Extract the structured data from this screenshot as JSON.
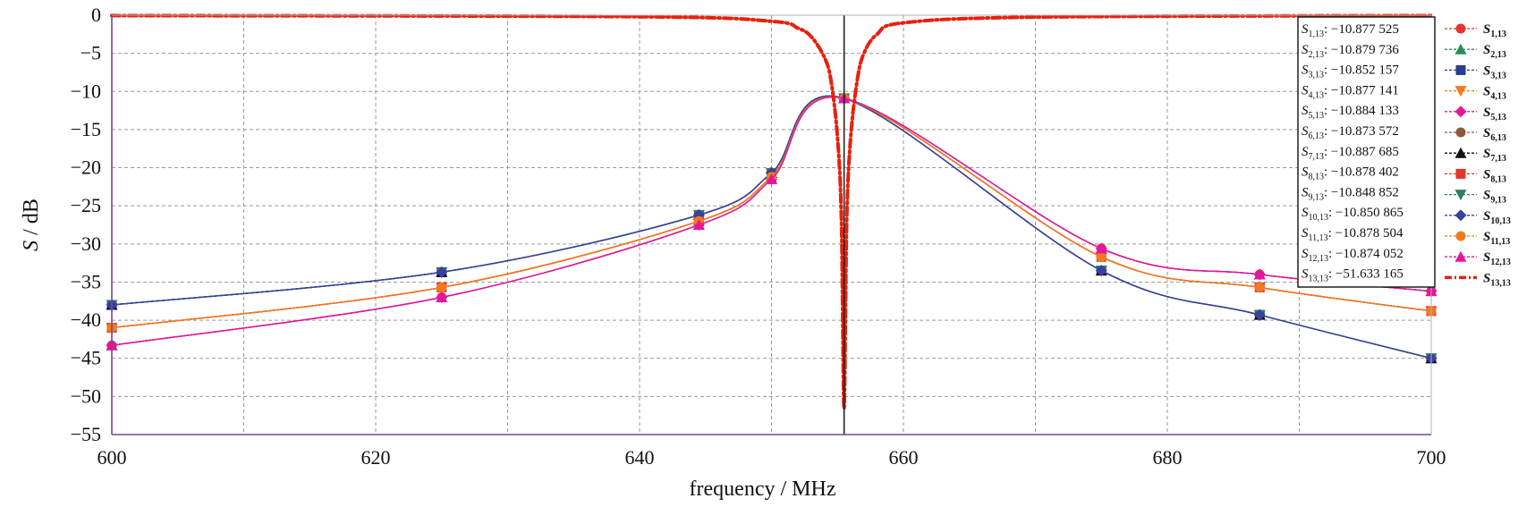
{
  "chart_data": {
    "type": "line",
    "xlabel": "frequency / MHz",
    "ylabel_main": "S",
    "ylabel_unit": " / dB",
    "xlim": [
      600,
      700
    ],
    "ylim": [
      -55,
      0
    ],
    "xticks": [
      600,
      620,
      640,
      660,
      680,
      700
    ],
    "yticks": [
      0,
      -5,
      -10,
      -15,
      -20,
      -25,
      -30,
      -35,
      -40,
      -45,
      -50,
      -55
    ],
    "grid": true,
    "grid_style": "dashed",
    "resonance_marker_x": 655.5,
    "legend_position": "right",
    "readout_position": "top-right",
    "readout_title": "",
    "series": [
      {
        "name": "S",
        "subscript": "1,13",
        "color": "#e8332a",
        "marker": "circle",
        "readout": "−10.877 525",
        "x": [
          600,
          625,
          644.5,
          650,
          655.5,
          675,
          687,
          700
        ],
        "y": [
          -43.3,
          -37.0,
          -27.5,
          -21.5,
          -10.9,
          -30.6,
          -34.0,
          -36.2
        ]
      },
      {
        "name": "S",
        "subscript": "2,13",
        "color": "#2e8b57",
        "marker": "triangle",
        "readout": "−10.879 736",
        "x": [
          600,
          625,
          644.5,
          650,
          655.5,
          675,
          687,
          700
        ],
        "y": [
          -43.3,
          -37.0,
          -27.5,
          -21.5,
          -10.9,
          -30.6,
          -34.0,
          -36.2
        ]
      },
      {
        "name": "S",
        "subscript": "3,13",
        "color": "#2b3c8f",
        "marker": "square",
        "readout": "−10.852 157",
        "x": [
          600,
          625,
          644.5,
          650,
          655.5,
          675,
          687,
          700
        ],
        "y": [
          -38.0,
          -33.7,
          -26.2,
          -20.7,
          -10.9,
          -33.5,
          -39.3,
          -45.0
        ]
      },
      {
        "name": "S",
        "subscript": "4,13",
        "color": "#f07b1f",
        "marker": "triangle-down",
        "readout": "−10.877 141",
        "x": [
          600,
          625,
          644.5,
          650,
          655.5,
          675,
          687,
          700
        ],
        "y": [
          -41.0,
          -35.7,
          -27.0,
          -21.2,
          -10.9,
          -31.7,
          -35.7,
          -38.8
        ]
      },
      {
        "name": "S",
        "subscript": "5,13",
        "color": "#e5169b",
        "marker": "diamond",
        "readout": "−10.884 133",
        "x": [
          600,
          625,
          644.5,
          650,
          655.5,
          675,
          687,
          700
        ],
        "y": [
          -43.3,
          -37.0,
          -27.5,
          -21.5,
          -10.9,
          -30.6,
          -34.0,
          -36.2
        ]
      },
      {
        "name": "S",
        "subscript": "6,13",
        "color": "#8b5a3c",
        "marker": "circle",
        "readout": "−10.873 572",
        "x": [
          600,
          625,
          644.5,
          650,
          655.5,
          675,
          687,
          700
        ],
        "y": [
          -41.0,
          -35.7,
          -27.0,
          -21.2,
          -10.9,
          -31.7,
          -35.7,
          -38.8
        ]
      },
      {
        "name": "S",
        "subscript": "7,13",
        "color": "#111111",
        "marker": "triangle",
        "readout": "−10.887 685",
        "x": [
          600,
          625,
          644.5,
          650,
          655.5,
          675,
          687,
          700
        ],
        "y": [
          -38.0,
          -33.7,
          -26.2,
          -20.7,
          -10.9,
          -33.5,
          -39.3,
          -45.0
        ]
      },
      {
        "name": "S",
        "subscript": "8,13",
        "color": "#e8332a",
        "marker": "square",
        "readout": "−10.878 402",
        "x": [
          600,
          625,
          644.5,
          650,
          655.5,
          675,
          687,
          700
        ],
        "y": [
          -41.0,
          -35.7,
          -27.0,
          -21.2,
          -10.9,
          -31.7,
          -35.7,
          -38.8
        ]
      },
      {
        "name": "S",
        "subscript": "9,13",
        "color": "#2e7d5b",
        "marker": "triangle-down",
        "readout": "−10.848 852",
        "x": [
          600,
          625,
          644.5,
          650,
          655.5,
          675,
          687,
          700
        ],
        "y": [
          -38.0,
          -33.7,
          -26.2,
          -20.7,
          -10.9,
          -33.5,
          -39.3,
          -45.0
        ]
      },
      {
        "name": "S",
        "subscript": "10,13",
        "color": "#3a3fa0",
        "marker": "diamond",
        "readout": "−10.850 865",
        "x": [
          600,
          625,
          644.5,
          650,
          655.5,
          675,
          687,
          700
        ],
        "y": [
          -38.0,
          -33.7,
          -26.2,
          -20.7,
          -10.9,
          -33.5,
          -39.3,
          -45.0
        ]
      },
      {
        "name": "S",
        "subscript": "11,13",
        "color": "#f07b1f",
        "marker": "circle",
        "readout": "−10.878 504",
        "x": [
          600,
          625,
          644.5,
          650,
          655.5,
          675,
          687,
          700
        ],
        "y": [
          -41.0,
          -35.7,
          -27.0,
          -21.2,
          -10.9,
          -31.7,
          -35.7,
          -38.8
        ]
      },
      {
        "name": "S",
        "subscript": "12,13",
        "color": "#e5169b",
        "marker": "triangle",
        "readout": "−10.874 052",
        "x": [
          600,
          625,
          644.5,
          650,
          655.5,
          675,
          687,
          700
        ],
        "y": [
          -43.3,
          -37.0,
          -27.5,
          -21.5,
          -10.9,
          -30.6,
          -34.0,
          -36.2
        ]
      },
      {
        "name": "S",
        "subscript": "13,13",
        "color": "#e8200c",
        "marker": "none",
        "readout": "−51.633 165",
        "x": [
          600,
          640,
          650,
          652,
          653,
          654,
          654.5,
          655,
          655.3,
          655.5,
          655.7,
          656,
          656.5,
          657,
          658,
          660,
          670,
          700
        ],
        "y": [
          -0.05,
          -0.2,
          -0.8,
          -1.7,
          -2.8,
          -5.5,
          -8.5,
          -16.0,
          -27.0,
          -51.6,
          -27.0,
          -16.0,
          -8.5,
          -5.0,
          -2.5,
          -1.0,
          -0.25,
          -0.05
        ]
      }
    ]
  }
}
